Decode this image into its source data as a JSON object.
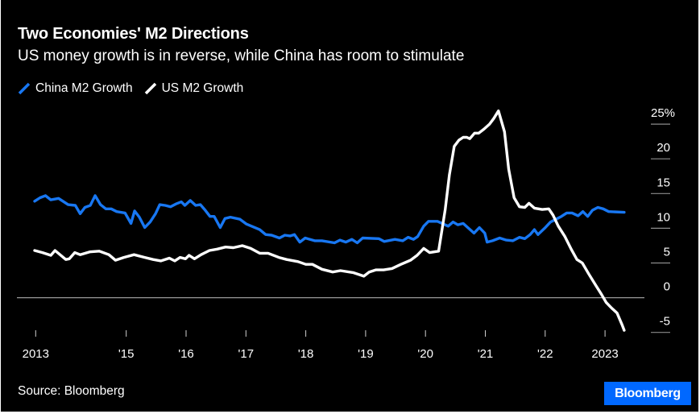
{
  "colors": {
    "background": "#000000",
    "china": "#1877f2",
    "us": "#ffffff",
    "gridline": "#8c8c8c",
    "zero_line": "#9a9a9a",
    "brand": "#0068ff",
    "text": "#ffffff"
  },
  "header": {
    "title": "Two Economies' M2 Directions",
    "subtitle": "US money growth is in reverse, while China has room to stimulate"
  },
  "footer": {
    "source": "Source: Bloomberg",
    "brand": "Bloomberg"
  },
  "chart_data": {
    "type": "line",
    "title": "Two Economies' M2 Directions",
    "subtitle": "US money growth is in reverse, while China has room to stimulate",
    "xlabel": "",
    "ylabel": "",
    "y_unit": "%",
    "xlim": [
      2013.47,
      2023.4
    ],
    "ylim": [
      -5,
      25
    ],
    "grid": true,
    "y_axis_position": "right",
    "legend_position": "top-left",
    "x_ticks": [
      {
        "x": 2013.5,
        "label": "2013"
      },
      {
        "x": 2015,
        "label": "'15"
      },
      {
        "x": 2016,
        "label": "'16"
      },
      {
        "x": 2017,
        "label": "'17"
      },
      {
        "x": 2018,
        "label": "'18"
      },
      {
        "x": 2019,
        "label": "'19"
      },
      {
        "x": 2020,
        "label": "'20"
      },
      {
        "x": 2021,
        "label": "'21"
      },
      {
        "x": 2022,
        "label": "'22"
      },
      {
        "x": 2023,
        "label": "2023"
      }
    ],
    "y_ticks": [
      {
        "y": 25,
        "label": "25%"
      },
      {
        "y": 20,
        "label": "20"
      },
      {
        "y": 15,
        "label": "15"
      },
      {
        "y": 10,
        "label": "10"
      },
      {
        "y": 5,
        "label": "5"
      },
      {
        "y": 0,
        "label": "0"
      },
      {
        "y": -5,
        "label": "-5"
      }
    ],
    "series": [
      {
        "name": "China M2 Growth",
        "color": "#1877f2",
        "points": [
          [
            2013.47,
            13.9
          ],
          [
            2013.56,
            14.4
          ],
          [
            2013.65,
            14.7
          ],
          [
            2013.74,
            14.1
          ],
          [
            2013.87,
            14.3
          ],
          [
            2014.03,
            13.4
          ],
          [
            2014.15,
            13.3
          ],
          [
            2014.23,
            12.1
          ],
          [
            2014.31,
            13.0
          ],
          [
            2014.4,
            13.3
          ],
          [
            2014.48,
            14.7
          ],
          [
            2014.57,
            13.4
          ],
          [
            2014.66,
            12.8
          ],
          [
            2014.75,
            12.8
          ],
          [
            2014.84,
            12.4
          ],
          [
            2014.98,
            12.2
          ],
          [
            2015.08,
            10.7
          ],
          [
            2015.14,
            12.5
          ],
          [
            2015.22,
            11.6
          ],
          [
            2015.31,
            10.1
          ],
          [
            2015.4,
            10.9
          ],
          [
            2015.49,
            12.1
          ],
          [
            2015.56,
            13.4
          ],
          [
            2015.65,
            13.3
          ],
          [
            2015.74,
            13.1
          ],
          [
            2015.83,
            13.5
          ],
          [
            2015.92,
            13.8
          ],
          [
            2015.98,
            13.3
          ],
          [
            2016.07,
            14.0
          ],
          [
            2016.16,
            13.3
          ],
          [
            2016.24,
            13.4
          ],
          [
            2016.31,
            12.7
          ],
          [
            2016.4,
            11.7
          ],
          [
            2016.47,
            11.7
          ],
          [
            2016.57,
            10.1
          ],
          [
            2016.65,
            11.4
          ],
          [
            2016.74,
            11.6
          ],
          [
            2016.9,
            11.3
          ],
          [
            2017.01,
            10.6
          ],
          [
            2017.23,
            9.8
          ],
          [
            2017.33,
            9.1
          ],
          [
            2017.43,
            9.0
          ],
          [
            2017.56,
            8.6
          ],
          [
            2017.65,
            9.0
          ],
          [
            2017.74,
            8.9
          ],
          [
            2017.81,
            9.1
          ],
          [
            2017.9,
            8.0
          ],
          [
            2017.99,
            8.6
          ],
          [
            2018.15,
            8.2
          ],
          [
            2018.27,
            8.2
          ],
          [
            2018.48,
            7.9
          ],
          [
            2018.57,
            8.3
          ],
          [
            2018.67,
            8.0
          ],
          [
            2018.77,
            8.4
          ],
          [
            2018.86,
            7.9
          ],
          [
            2018.95,
            8.6
          ],
          [
            2019.22,
            8.5
          ],
          [
            2019.31,
            8.1
          ],
          [
            2019.49,
            8.4
          ],
          [
            2019.62,
            8.2
          ],
          [
            2019.71,
            8.7
          ],
          [
            2019.8,
            8.4
          ],
          [
            2019.87,
            8.8
          ],
          [
            2019.97,
            10.3
          ],
          [
            2020.05,
            11.0
          ],
          [
            2020.2,
            11.0
          ],
          [
            2020.38,
            10.3
          ],
          [
            2020.46,
            10.9
          ],
          [
            2020.54,
            10.5
          ],
          [
            2020.63,
            10.7
          ],
          [
            2020.72,
            10.0
          ],
          [
            2020.81,
            9.3
          ],
          [
            2020.9,
            10.1
          ],
          [
            2020.99,
            9.3
          ],
          [
            2021.03,
            8.0
          ],
          [
            2021.12,
            8.2
          ],
          [
            2021.24,
            8.6
          ],
          [
            2021.35,
            8.3
          ],
          [
            2021.46,
            8.2
          ],
          [
            2021.57,
            8.7
          ],
          [
            2021.66,
            8.5
          ],
          [
            2021.75,
            9.1
          ],
          [
            2021.82,
            9.8
          ],
          [
            2021.88,
            9.1
          ],
          [
            2021.99,
            10.0
          ],
          [
            2022.09,
            10.9
          ],
          [
            2022.18,
            11.3
          ],
          [
            2022.27,
            11.7
          ],
          [
            2022.36,
            12.2
          ],
          [
            2022.45,
            12.2
          ],
          [
            2022.55,
            11.8
          ],
          [
            2022.63,
            12.4
          ],
          [
            2022.71,
            11.7
          ],
          [
            2022.79,
            12.6
          ],
          [
            2022.88,
            13.0
          ],
          [
            2022.97,
            12.8
          ],
          [
            2023.06,
            12.4
          ],
          [
            2023.32,
            12.3
          ]
        ]
      },
      {
        "name": "US M2 Growth",
        "color": "#ffffff",
        "points": [
          [
            2013.47,
            6.8
          ],
          [
            2013.6,
            6.5
          ],
          [
            2013.74,
            6.1
          ],
          [
            2013.81,
            6.8
          ],
          [
            2013.99,
            5.5
          ],
          [
            2014.05,
            5.6
          ],
          [
            2014.14,
            6.5
          ],
          [
            2014.23,
            6.2
          ],
          [
            2014.39,
            6.6
          ],
          [
            2014.55,
            6.7
          ],
          [
            2014.71,
            6.2
          ],
          [
            2014.82,
            5.4
          ],
          [
            2014.96,
            5.8
          ],
          [
            2015.13,
            6.2
          ],
          [
            2015.31,
            5.8
          ],
          [
            2015.45,
            5.5
          ],
          [
            2015.58,
            5.3
          ],
          [
            2015.72,
            5.7
          ],
          [
            2015.81,
            5.3
          ],
          [
            2015.9,
            5.8
          ],
          [
            2015.99,
            5.6
          ],
          [
            2016.05,
            6.1
          ],
          [
            2016.14,
            5.6
          ],
          [
            2016.25,
            6.2
          ],
          [
            2016.39,
            6.8
          ],
          [
            2016.52,
            7.0
          ],
          [
            2016.66,
            7.3
          ],
          [
            2016.79,
            7.2
          ],
          [
            2016.94,
            7.5
          ],
          [
            2017.08,
            7.1
          ],
          [
            2017.23,
            6.4
          ],
          [
            2017.37,
            6.4
          ],
          [
            2017.55,
            5.8
          ],
          [
            2017.68,
            5.5
          ],
          [
            2017.87,
            5.2
          ],
          [
            2018.0,
            4.8
          ],
          [
            2018.11,
            4.8
          ],
          [
            2018.27,
            4.1
          ],
          [
            2018.45,
            3.7
          ],
          [
            2018.58,
            3.9
          ],
          [
            2018.8,
            3.6
          ],
          [
            2018.97,
            3.1
          ],
          [
            2019.06,
            3.7
          ],
          [
            2019.17,
            4.0
          ],
          [
            2019.3,
            4.0
          ],
          [
            2019.44,
            4.2
          ],
          [
            2019.59,
            4.8
          ],
          [
            2019.75,
            5.4
          ],
          [
            2019.86,
            6.1
          ],
          [
            2019.97,
            7.1
          ],
          [
            2020.07,
            6.5
          ],
          [
            2020.22,
            6.7
          ],
          [
            2020.33,
            12.7
          ],
          [
            2020.4,
            17.7
          ],
          [
            2020.48,
            21.8
          ],
          [
            2020.56,
            22.7
          ],
          [
            2020.63,
            23.1
          ],
          [
            2020.69,
            23.1
          ],
          [
            2020.74,
            22.9
          ],
          [
            2020.82,
            23.7
          ],
          [
            2020.89,
            23.7
          ],
          [
            2020.98,
            24.3
          ],
          [
            2021.07,
            25.0
          ],
          [
            2021.14,
            25.8
          ],
          [
            2021.22,
            26.9
          ],
          [
            2021.32,
            23.9
          ],
          [
            2021.39,
            18.5
          ],
          [
            2021.48,
            14.4
          ],
          [
            2021.57,
            13.1
          ],
          [
            2021.66,
            13.0
          ],
          [
            2021.73,
            13.6
          ],
          [
            2021.82,
            12.9
          ],
          [
            2021.95,
            12.7
          ],
          [
            2022.06,
            12.8
          ],
          [
            2022.13,
            11.9
          ],
          [
            2022.22,
            10.3
          ],
          [
            2022.33,
            8.8
          ],
          [
            2022.44,
            6.9
          ],
          [
            2022.53,
            5.5
          ],
          [
            2022.62,
            5.0
          ],
          [
            2022.73,
            3.4
          ],
          [
            2022.85,
            1.7
          ],
          [
            2022.94,
            0.5
          ],
          [
            2023.02,
            -0.7
          ],
          [
            2023.11,
            -1.5
          ],
          [
            2023.2,
            -2.2
          ],
          [
            2023.29,
            -4.0
          ],
          [
            2023.32,
            -4.7
          ]
        ]
      }
    ]
  }
}
